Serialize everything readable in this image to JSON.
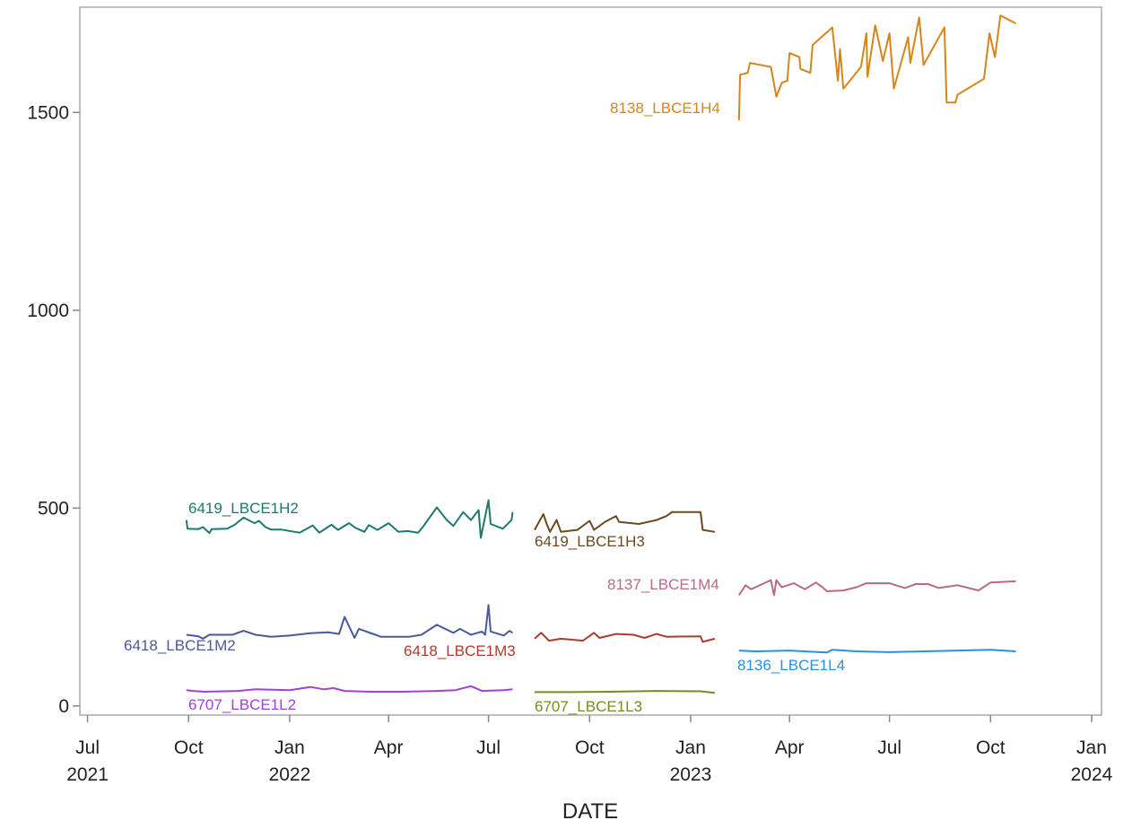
{
  "chart_data": {
    "type": "line",
    "x_label": "DATE",
    "xlim": [
      "2021-06-24",
      "2024-01-10"
    ],
    "ylim": [
      -23,
      1766
    ],
    "yticks": [
      0,
      500,
      1000,
      1500
    ],
    "xticks": [
      {
        "value": "2021-07-01",
        "label": "Jul 2021"
      },
      {
        "value": "2021-10-01",
        "label": "Oct"
      },
      {
        "value": "2022-01-01",
        "label": "Jan 2022"
      },
      {
        "value": "2022-04-01",
        "label": "Apr"
      },
      {
        "value": "2022-07-01",
        "label": "Jul"
      },
      {
        "value": "2022-10-01",
        "label": "Oct"
      },
      {
        "value": "2023-01-01",
        "label": "Jan 2023"
      },
      {
        "value": "2023-04-01",
        "label": "Apr"
      },
      {
        "value": "2023-07-01",
        "label": "Jul"
      },
      {
        "value": "2023-10-01",
        "label": "Oct"
      },
      {
        "value": "2024-01-01",
        "label": "Jan 2024"
      }
    ],
    "grid": false,
    "series": [
      {
        "name": "6419_LBCE1H2",
        "color": "#1b7a6e",
        "x": [
          "2021-09-29",
          "2021-09-30",
          "2021-10-10",
          "2021-10-14",
          "2021-10-20",
          "2021-10-22",
          "2021-11-05",
          "2021-11-12",
          "2021-11-20",
          "2021-11-30",
          "2021-12-04",
          "2021-12-10",
          "2021-12-15",
          "2021-12-24",
          "2022-01-10",
          "2022-01-22",
          "2022-01-28",
          "2022-02-08",
          "2022-02-14",
          "2022-02-24",
          "2022-03-02",
          "2022-03-10",
          "2022-03-14",
          "2022-03-22",
          "2022-04-01",
          "2022-04-10",
          "2022-04-18",
          "2022-04-28",
          "2022-05-03",
          "2022-05-15",
          "2022-05-24",
          "2022-05-30",
          "2022-06-08",
          "2022-06-15",
          "2022-06-22",
          "2022-06-24",
          "2022-07-01",
          "2022-07-03",
          "2022-07-14",
          "2022-07-22",
          "2022-07-23"
        ],
        "values": [
          470,
          448,
          447,
          452,
          437,
          447,
          448,
          458,
          476,
          462,
          468,
          452,
          446,
          446,
          438,
          456,
          438,
          458,
          445,
          462,
          450,
          440,
          457,
          445,
          462,
          440,
          442,
          438,
          455,
          502,
          470,
          455,
          490,
          470,
          495,
          425,
          520,
          460,
          448,
          470,
          490
        ]
      },
      {
        "name": "6418_LBCE1M2",
        "color": "#4a5a9a",
        "x": [
          "2021-09-29",
          "2021-10-10",
          "2021-10-14",
          "2021-10-20",
          "2021-11-10",
          "2021-11-20",
          "2021-12-01",
          "2021-12-15",
          "2022-01-01",
          "2022-01-20",
          "2022-02-05",
          "2022-02-15",
          "2022-02-20",
          "2022-02-26",
          "2022-03-01",
          "2022-03-05",
          "2022-03-20",
          "2022-03-25",
          "2022-04-20",
          "2022-05-01",
          "2022-05-15",
          "2022-05-30",
          "2022-06-05",
          "2022-06-15",
          "2022-06-25",
          "2022-06-28",
          "2022-07-01",
          "2022-07-03",
          "2022-07-15",
          "2022-07-20",
          "2022-07-23"
        ],
        "values": [
          180,
          176,
          170,
          180,
          180,
          190,
          180,
          175,
          178,
          184,
          186,
          182,
          225,
          190,
          172,
          195,
          180,
          175,
          175,
          180,
          205,
          185,
          195,
          180,
          188,
          180,
          255,
          188,
          178,
          190,
          185
        ]
      },
      {
        "name": "6707_LBCE1L2",
        "color": "#a040e0",
        "x": [
          "2021-09-29",
          "2021-10-05",
          "2021-10-15",
          "2021-11-15",
          "2021-12-01",
          "2022-01-01",
          "2022-01-20",
          "2022-02-01",
          "2022-02-10",
          "2022-02-20",
          "2022-03-15",
          "2022-04-15",
          "2022-05-15",
          "2022-06-01",
          "2022-06-15",
          "2022-06-25",
          "2022-07-15",
          "2022-07-23"
        ],
        "values": [
          40,
          38,
          36,
          38,
          42,
          40,
          48,
          42,
          45,
          38,
          36,
          36,
          38,
          40,
          50,
          38,
          40,
          42
        ]
      },
      {
        "name": "6419_LBCE1H3",
        "color": "#6b4a1e",
        "x": [
          "2022-08-12",
          "2022-08-20",
          "2022-08-23",
          "2022-08-26",
          "2022-09-01",
          "2022-09-05",
          "2022-09-20",
          "2022-10-01",
          "2022-10-05",
          "2022-10-15",
          "2022-10-25",
          "2022-10-28",
          "2022-11-15",
          "2022-12-01",
          "2022-12-10",
          "2022-12-15",
          "2023-01-10",
          "2023-01-12",
          "2023-01-23"
        ],
        "values": [
          445,
          485,
          460,
          440,
          470,
          440,
          445,
          468,
          445,
          465,
          480,
          465,
          460,
          470,
          480,
          490,
          490,
          445,
          440
        ]
      },
      {
        "name": "6418_LBCE1M3",
        "color": "#b03a2e",
        "x": [
          "2022-08-12",
          "2022-08-18",
          "2022-08-25",
          "2022-09-05",
          "2022-09-25",
          "2022-10-05",
          "2022-10-10",
          "2022-10-25",
          "2022-11-10",
          "2022-11-20",
          "2022-12-01",
          "2022-12-10",
          "2023-01-10",
          "2023-01-12",
          "2023-01-23"
        ],
        "values": [
          170,
          185,
          165,
          170,
          165,
          185,
          172,
          182,
          180,
          172,
          182,
          175,
          176,
          162,
          170
        ]
      },
      {
        "name": "6707_LBCE1L3",
        "color": "#7a8a20",
        "x": [
          "2022-08-12",
          "2022-09-15",
          "2022-10-20",
          "2022-12-01",
          "2023-01-10",
          "2023-01-23"
        ],
        "values": [
          35,
          35,
          36,
          38,
          37,
          33
        ]
      },
      {
        "name": "8138_LBCE1H4",
        "color": "#d4861a",
        "x": [
          "2023-02-14",
          "2023-02-15",
          "2023-02-22",
          "2023-02-24",
          "2023-03-15",
          "2023-03-20",
          "2023-03-25",
          "2023-03-30",
          "2023-04-01",
          "2023-04-10",
          "2023-04-11",
          "2023-04-20",
          "2023-04-22",
          "2023-05-10",
          "2023-05-15",
          "2023-05-17",
          "2023-05-20",
          "2023-06-05",
          "2023-06-10",
          "2023-06-11",
          "2023-06-18",
          "2023-06-25",
          "2023-07-01",
          "2023-07-05",
          "2023-07-18",
          "2023-07-20",
          "2023-07-28",
          "2023-08-01",
          "2023-08-20",
          "2023-08-22",
          "2023-08-30",
          "2023-09-01",
          "2023-09-25",
          "2023-09-30",
          "2023-10-05",
          "2023-10-10",
          "2023-10-24"
        ],
        "values": [
          1480,
          1595,
          1600,
          1625,
          1615,
          1540,
          1575,
          1580,
          1650,
          1640,
          1610,
          1600,
          1670,
          1715,
          1580,
          1660,
          1560,
          1615,
          1700,
          1590,
          1720,
          1630,
          1700,
          1560,
          1690,
          1625,
          1740,
          1620,
          1715,
          1525,
          1525,
          1545,
          1585,
          1700,
          1640,
          1745,
          1725
        ]
      },
      {
        "name": "8137_LBCE1M4",
        "color": "#b86a8a",
        "x": [
          "2023-02-14",
          "2023-02-20",
          "2023-02-25",
          "2023-03-15",
          "2023-03-18",
          "2023-03-20",
          "2023-03-25",
          "2023-04-05",
          "2023-04-15",
          "2023-04-25",
          "2023-05-01",
          "2023-05-05",
          "2023-05-20",
          "2023-06-01",
          "2023-06-10",
          "2023-07-01",
          "2023-07-15",
          "2023-07-25",
          "2023-08-05",
          "2023-08-15",
          "2023-09-01",
          "2023-09-20",
          "2023-10-01",
          "2023-10-24"
        ],
        "values": [
          280,
          305,
          295,
          318,
          280,
          318,
          300,
          310,
          295,
          312,
          300,
          290,
          292,
          300,
          310,
          310,
          298,
          308,
          308,
          298,
          305,
          292,
          312,
          315
        ]
      },
      {
        "name": "8136_LBCE1L4",
        "color": "#2a90e0",
        "x": [
          "2023-02-14",
          "2023-03-01",
          "2023-04-01",
          "2023-05-05",
          "2023-05-10",
          "2023-06-01",
          "2023-07-01",
          "2023-08-01",
          "2023-09-01",
          "2023-10-01",
          "2023-10-24"
        ],
        "values": [
          140,
          138,
          140,
          135,
          142,
          138,
          136,
          138,
          140,
          142,
          138
        ]
      }
    ]
  }
}
